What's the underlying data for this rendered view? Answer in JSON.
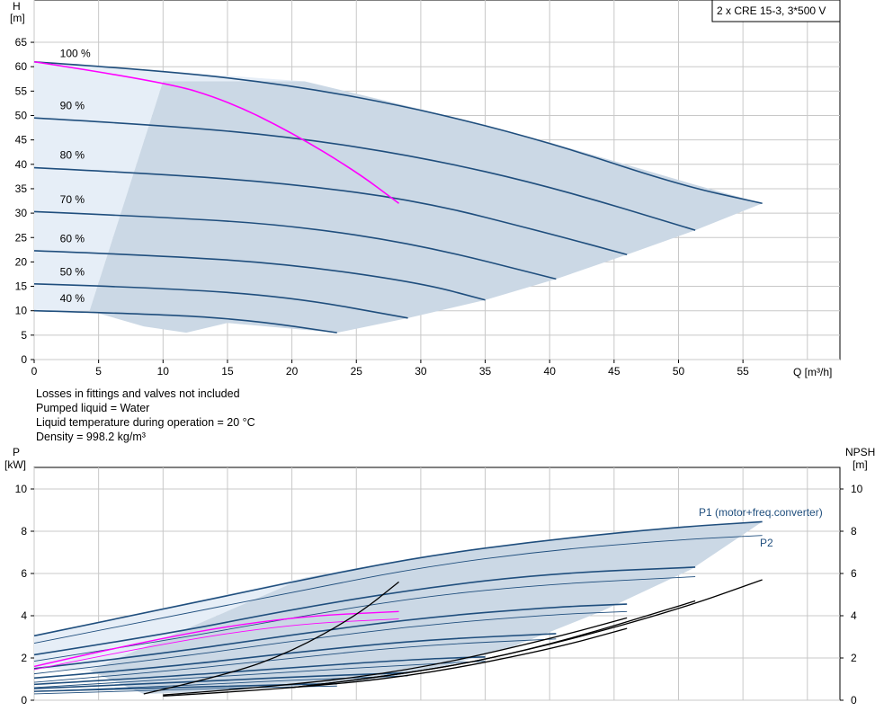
{
  "title_box": "2 x CRE 15-3, 3*500 V",
  "notes": [
    "Losses in fittings and valves not included",
    "Pumped liquid = Water",
    "Liquid temperature during operation = 20 °C",
    "Density = 998.2 kg/m³"
  ],
  "colors": {
    "curve": "#1f4e7d",
    "region": "#cbd8e5",
    "region_light": "#e6eef7",
    "duty": "#ff00ff",
    "npsh": "#000000",
    "grid": "#c8c8c8"
  },
  "chart_data": [
    {
      "type": "line",
      "ylabel": "H",
      "yunit": "[m]",
      "xlabel": "Q [m³/h]",
      "xlim": [
        0,
        62
      ],
      "ylim": [
        0,
        70
      ],
      "xticks": [
        0,
        5,
        10,
        15,
        20,
        25,
        30,
        35,
        40,
        45,
        50,
        55
      ],
      "yticks": [
        0,
        5,
        10,
        15,
        20,
        25,
        30,
        35,
        40,
        45,
        50,
        55,
        60,
        65
      ],
      "grid": true,
      "series": [
        {
          "name": "100 %",
          "label_x": 2,
          "label_y": 62,
          "x": [
            0,
            10,
            20,
            30,
            40,
            50,
            56.5
          ],
          "y": [
            61,
            59.2,
            56.2,
            51.3,
            44.5,
            35.8,
            32
          ]
        },
        {
          "name": "90 %",
          "label_x": 2,
          "label_y": 51.3,
          "x": [
            0,
            10,
            20,
            30,
            40,
            51.3
          ],
          "y": [
            49.5,
            48,
            45.6,
            41.5,
            35.5,
            26.5
          ]
        },
        {
          "name": "80 %",
          "label_x": 2,
          "label_y": 41.2,
          "x": [
            0,
            10,
            20,
            30,
            40,
            46
          ],
          "y": [
            39.3,
            38,
            36,
            32.5,
            25.8,
            21.5
          ]
        },
        {
          "name": "70 %",
          "label_x": 2,
          "label_y": 32,
          "x": [
            0,
            10,
            20,
            30,
            40.5
          ],
          "y": [
            30.3,
            29.2,
            27.5,
            23.5,
            16.5
          ]
        },
        {
          "name": "60 %",
          "label_x": 2,
          "label_y": 24,
          "x": [
            0,
            10,
            20,
            30,
            35
          ],
          "y": [
            22.3,
            21.3,
            19.5,
            15.7,
            12.2
          ]
        },
        {
          "name": "50 %",
          "label_x": 2,
          "label_y": 17.2,
          "x": [
            0,
            10,
            20,
            29
          ],
          "y": [
            15.5,
            14.7,
            12.8,
            8.5
          ]
        },
        {
          "name": "40 %",
          "label_x": 2,
          "label_y": 11.8,
          "x": [
            0,
            10,
            17,
            23.5
          ],
          "y": [
            10,
            9.3,
            8,
            5.5
          ]
        }
      ],
      "duty_curve": {
        "x": [
          0,
          10,
          15,
          20,
          25,
          28.3
        ],
        "y": [
          61,
          57,
          53,
          46.5,
          38.5,
          32
        ]
      },
      "region_dark": {
        "x": [
          4.3,
          8.5,
          11.8,
          15,
          23.5,
          29,
          35,
          40.5,
          46,
          51.3,
          56.5,
          51.3,
          40,
          30,
          21,
          10
        ],
        "y": [
          10,
          6.8,
          5.5,
          7.5,
          5.5,
          8.5,
          12.2,
          16.5,
          21.5,
          26.5,
          32,
          35.8,
          44.5,
          51.3,
          57,
          57
        ]
      },
      "region_light": {
        "x": [
          0,
          21,
          10,
          4.3,
          0
        ],
        "y": [
          61,
          57,
          57,
          10,
          10
        ]
      }
    },
    {
      "type": "line",
      "ylabel": "P",
      "yunit": "[kW]",
      "ylabel_right": "NPSH",
      "yunit_right": "[m]",
      "xlim": [
        0,
        62
      ],
      "ylim": [
        0,
        11
      ],
      "yticks": [
        0,
        2,
        4,
        6,
        8,
        10
      ],
      "yticks_right": [
        0,
        2,
        4,
        6,
        8,
        10
      ],
      "grid": true,
      "series_labels": [
        "P1 (motor+freq.converter)",
        "P2"
      ],
      "p1_curves": [
        {
          "x": [
            0,
            10,
            20,
            30,
            40,
            50,
            56.5
          ],
          "y": [
            3.05,
            4.3,
            5.6,
            6.8,
            7.6,
            8.2,
            8.45
          ]
        },
        {
          "x": [
            0,
            10,
            20,
            30,
            40,
            51.3
          ],
          "y": [
            2.15,
            3.1,
            4.3,
            5.3,
            6,
            6.3
          ]
        },
        {
          "x": [
            0,
            10,
            20,
            30,
            40,
            46
          ],
          "y": [
            1.5,
            2.2,
            3.1,
            3.9,
            4.4,
            4.55
          ]
        },
        {
          "x": [
            0,
            10,
            20,
            30,
            40.5
          ],
          "y": [
            1.05,
            1.55,
            2.25,
            2.85,
            3.15
          ]
        },
        {
          "x": [
            0,
            10,
            20,
            30,
            35
          ],
          "y": [
            0.75,
            1.1,
            1.55,
            1.95,
            2.05
          ]
        },
        {
          "x": [
            0,
            10,
            20,
            29
          ],
          "y": [
            0.55,
            0.8,
            1.1,
            1.3
          ]
        },
        {
          "x": [
            0,
            10,
            17,
            23.5
          ],
          "y": [
            0.42,
            0.58,
            0.7,
            0.78
          ]
        }
      ],
      "p2_curves": [
        {
          "x": [
            0,
            10,
            20,
            30,
            40,
            50,
            56.5
          ],
          "y": [
            2.7,
            3.9,
            5.1,
            6.3,
            7.1,
            7.6,
            7.8
          ]
        },
        {
          "x": [
            0,
            10,
            20,
            30,
            40,
            51.3
          ],
          "y": [
            1.85,
            2.8,
            3.9,
            4.9,
            5.5,
            5.85
          ]
        },
        {
          "x": [
            0,
            10,
            20,
            30,
            40,
            46
          ],
          "y": [
            1.25,
            1.95,
            2.8,
            3.55,
            4.05,
            4.2
          ]
        },
        {
          "x": [
            0,
            10,
            20,
            30,
            40.5
          ],
          "y": [
            0.85,
            1.35,
            2,
            2.6,
            2.9
          ]
        },
        {
          "x": [
            0,
            10,
            20,
            30,
            35
          ],
          "y": [
            0.6,
            0.95,
            1.35,
            1.7,
            1.85
          ]
        },
        {
          "x": [
            0,
            10,
            20,
            29
          ],
          "y": [
            0.42,
            0.65,
            0.95,
            1.15
          ]
        },
        {
          "x": [
            0,
            10,
            17,
            23.5
          ],
          "y": [
            0.3,
            0.48,
            0.6,
            0.67
          ]
        }
      ],
      "duty_p1": {
        "x": [
          0,
          10,
          20,
          28.3
        ],
        "y": [
          1.6,
          3,
          3.95,
          4.2
        ]
      },
      "duty_p2": {
        "x": [
          0,
          10,
          20,
          28.3
        ],
        "y": [
          1.45,
          2.7,
          3.6,
          3.85
        ]
      },
      "npsh_curves": [
        {
          "x": [
            8.5,
            15,
            20,
            25,
            28.3
          ],
          "y": [
            0.3,
            1.2,
            2.3,
            4,
            5.6
          ]
        },
        {
          "x": [
            10,
            20,
            30,
            40,
            46
          ],
          "y": [
            0.2,
            0.55,
            1.2,
            2.4,
            3.4
          ]
        },
        {
          "x": [
            10,
            20,
            30,
            40,
            46
          ],
          "y": [
            0.25,
            0.7,
            1.5,
            2.9,
            3.9
          ]
        },
        {
          "x": [
            20,
            30,
            40,
            51.3
          ],
          "y": [
            0.6,
            1.3,
            2.6,
            4.7
          ]
        },
        {
          "x": [
            20,
            30,
            40,
            50,
            56.5
          ],
          "y": [
            0.6,
            1.3,
            2.6,
            4.3,
            5.7
          ]
        }
      ],
      "region_dark": {
        "x": [
          21,
          30,
          40,
          50,
          56.5,
          51,
          44,
          37,
          31.5,
          26,
          20,
          14,
          8.5,
          4.3
        ],
        "y": [
          5.8,
          6.8,
          7.6,
          8.2,
          8.45,
          6.2,
          4.2,
          2.5,
          1.55,
          0.9,
          0.7,
          0.4,
          0.3,
          1.4
        ]
      },
      "region_light": {
        "x": [
          0,
          21,
          4.3,
          0
        ],
        "y": [
          3.05,
          5.8,
          1.4,
          1.5
        ]
      }
    }
  ]
}
